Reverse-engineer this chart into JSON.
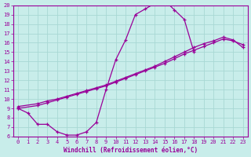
{
  "xlabel": "Windchill (Refroidissement éolien,°C)",
  "xlim": [
    -0.5,
    23.5
  ],
  "ylim": [
    6,
    20
  ],
  "xticks": [
    0,
    1,
    2,
    3,
    4,
    5,
    6,
    7,
    8,
    9,
    10,
    11,
    12,
    13,
    14,
    15,
    16,
    17,
    18,
    19,
    20,
    21,
    22,
    23
  ],
  "yticks": [
    6,
    7,
    8,
    9,
    10,
    11,
    12,
    13,
    14,
    15,
    16,
    17,
    18,
    19,
    20
  ],
  "bg_color": "#c8edea",
  "grid_color": "#a8d8d4",
  "line_color": "#990099",
  "curve1_x": [
    0,
    1,
    2,
    3,
    4,
    5,
    6,
    7,
    8,
    9,
    10,
    11,
    12,
    13,
    14,
    15,
    16,
    17,
    18
  ],
  "curve1_y": [
    9.0,
    8.5,
    7.3,
    7.3,
    6.5,
    6.15,
    6.15,
    6.5,
    7.5,
    11.0,
    14.2,
    16.3,
    19.0,
    19.6,
    20.2,
    20.5,
    19.5,
    18.5,
    15.0
  ],
  "curve2_x": [
    0,
    2,
    3,
    4,
    5,
    6,
    7,
    8,
    9,
    10,
    11,
    12,
    13,
    14,
    15,
    16,
    17,
    18,
    19,
    20,
    21,
    22,
    23
  ],
  "curve2_y": [
    9.2,
    9.5,
    9.8,
    10.0,
    10.3,
    10.6,
    10.9,
    11.2,
    11.5,
    11.9,
    12.3,
    12.7,
    13.1,
    13.5,
    14.0,
    14.5,
    15.0,
    15.5,
    15.9,
    16.2,
    16.6,
    16.3,
    15.5
  ],
  "curve3_x": [
    0,
    2,
    3,
    4,
    5,
    6,
    7,
    8,
    9,
    10,
    11,
    12,
    13,
    14,
    15,
    16,
    17,
    18,
    19,
    20,
    21,
    22,
    23
  ],
  "curve3_y": [
    9.0,
    9.3,
    9.6,
    9.9,
    10.2,
    10.5,
    10.8,
    11.1,
    11.4,
    11.8,
    12.2,
    12.6,
    13.0,
    13.4,
    13.8,
    14.3,
    14.8,
    15.2,
    15.6,
    16.0,
    16.4,
    16.2,
    15.8
  ]
}
